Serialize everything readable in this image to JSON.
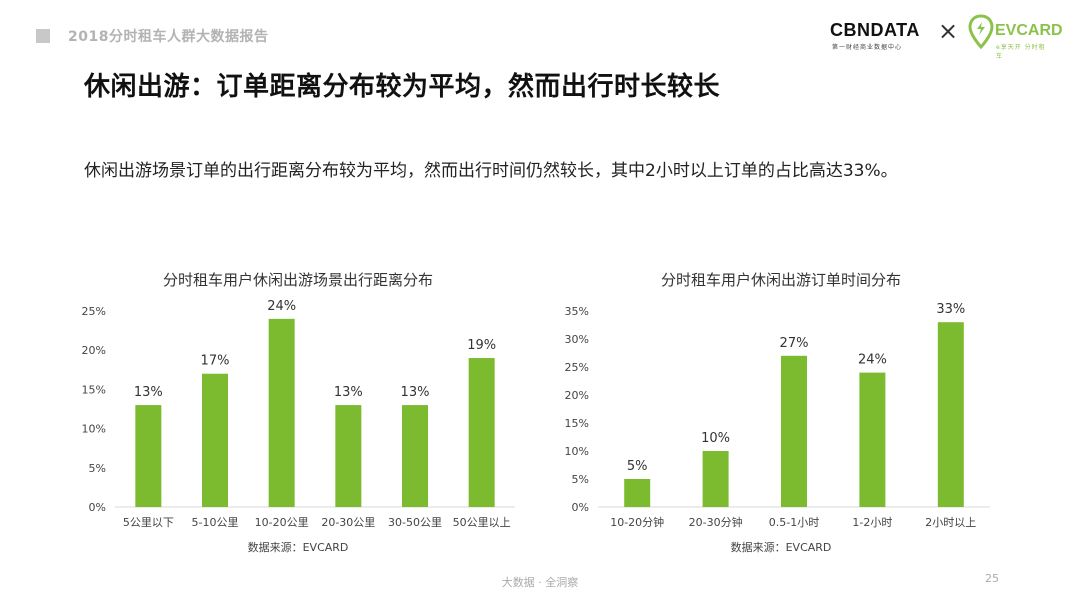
{
  "header": {
    "report_title": "2018分时租车人群大数据报告",
    "cbn_logo": "CBNDATA",
    "cbn_sub": "第一财经商业数据中心",
    "times": "×",
    "ev_logo": "EVCARD",
    "ev_sub": "e享天开 分时租车"
  },
  "main_title": "休闲出游：订单距离分布较为平均，然而出行时长较长",
  "subtitle": "休闲出游场景订单的出行距离分布较为平均，然而出行时间仍然较长，其中2小时以上订单的占比高达33%。",
  "colors": {
    "bar": "#7cbb2f",
    "axis": "#d9d9d9",
    "text": "#444444",
    "brand_green": "#8bc34a"
  },
  "footer": {
    "text": "大数据 · 全洞察",
    "page": "25"
  },
  "chart_data": [
    {
      "type": "bar",
      "title": "分时租车用户休闲出游场景出行距离分布",
      "categories": [
        "5公里以下",
        "5-10公里",
        "10-20公里",
        "20-30公里",
        "30-50公里",
        "50公里以上"
      ],
      "values": [
        13,
        17,
        24,
        13,
        13,
        19
      ],
      "value_labels": [
        "13%",
        "17%",
        "24%",
        "13%",
        "13%",
        "19%"
      ],
      "yticks": [
        "0%",
        "5%",
        "10%",
        "15%",
        "20%",
        "25%"
      ],
      "ylim": [
        0,
        25
      ],
      "source": "数据来源：EVCARD"
    },
    {
      "type": "bar",
      "title": "分时租车用户休闲出游订单时间分布",
      "categories": [
        "10-20分钟",
        "20-30分钟",
        "0.5-1小时",
        "1-2小时",
        "2小时以上"
      ],
      "values": [
        5,
        10,
        27,
        24,
        33
      ],
      "value_labels": [
        "5%",
        "10%",
        "27%",
        "24%",
        "33%"
      ],
      "yticks": [
        "0%",
        "5%",
        "10%",
        "15%",
        "20%",
        "25%",
        "30%",
        "35%"
      ],
      "ylim": [
        0,
        35
      ],
      "source": "数据来源：EVCARD"
    }
  ]
}
